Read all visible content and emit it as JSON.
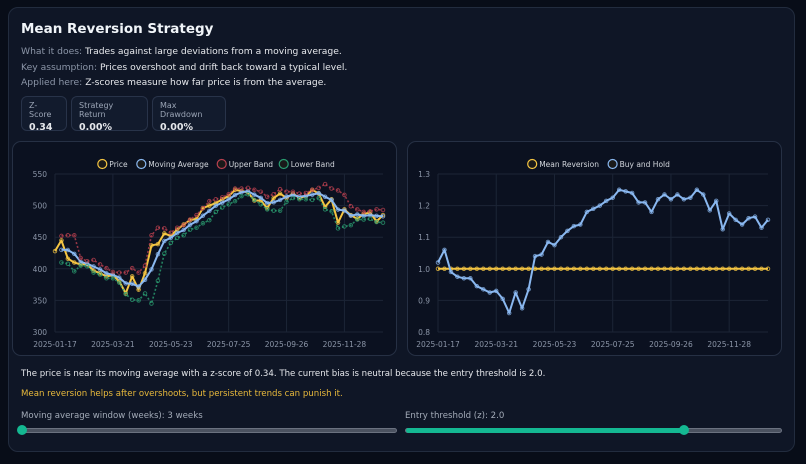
{
  "title": "Mean Reversion Strategy",
  "description": [
    {
      "key": "What it does:",
      "text": "Trades against large deviations from a moving average."
    },
    {
      "key": "Key assumption:",
      "text": "Prices overshoot and drift back toward a typical level."
    },
    {
      "key": "Applied here:",
      "text": "Z-scores measure how far price is from the average."
    }
  ],
  "stats": [
    {
      "label": "Z-Score",
      "value": "0.34"
    },
    {
      "label": "Strategy Return",
      "value": "0.00%"
    },
    {
      "label": "Max Drawdown",
      "value": "0.00%"
    }
  ],
  "summary": "The price is near its moving average with a z-score of 0.34. The current bias is neutral because the entry threshold is 2.0.",
  "warning": "Mean reversion helps after overshoots, but persistent trends can punish it.",
  "colors": {
    "price": "#f5c542",
    "ma": "#8ab8f0",
    "upper": "#b8404f",
    "lower": "#2a9d70",
    "accent": "#14b892",
    "warning": "#e8b93c"
  },
  "sliders": [
    {
      "label": "Moving average window (weeks): 3 weeks",
      "fraction": 0.0
    },
    {
      "label": "Entry threshold (z): 2.0",
      "fraction": 0.74
    }
  ],
  "chart_data": [
    {
      "type": "line",
      "ylim": [
        300,
        550
      ],
      "yticks": [
        300,
        350,
        400,
        450,
        500,
        550
      ],
      "grid": true,
      "legend": "top",
      "x": [
        "2025-01-17",
        "2025-01-24",
        "2025-01-31",
        "2025-02-07",
        "2025-02-14",
        "2025-02-21",
        "2025-02-28",
        "2025-03-07",
        "2025-03-14",
        "2025-03-21",
        "2025-03-28",
        "2025-04-04",
        "2025-04-11",
        "2025-04-18",
        "2025-04-25",
        "2025-05-02",
        "2025-05-09",
        "2025-05-16",
        "2025-05-23",
        "2025-05-30",
        "2025-06-06",
        "2025-06-13",
        "2025-06-20",
        "2025-06-27",
        "2025-07-04",
        "2025-07-11",
        "2025-07-18",
        "2025-07-25",
        "2025-08-01",
        "2025-08-08",
        "2025-08-15",
        "2025-08-22",
        "2025-08-29",
        "2025-09-05",
        "2025-09-12",
        "2025-09-19",
        "2025-09-26",
        "2025-10-03",
        "2025-10-10",
        "2025-10-17",
        "2025-10-24",
        "2025-10-31",
        "2025-11-07",
        "2025-11-14",
        "2025-11-21",
        "2025-11-28",
        "2025-12-05",
        "2025-12-12",
        "2025-12-19",
        "2025-12-26",
        "2026-01-02",
        "2026-01-09"
      ],
      "xticks": [
        "2025-01-17",
        "2025-03-21",
        "2025-05-23",
        "2025-07-25",
        "2025-09-26",
        "2025-11-28"
      ],
      "series": [
        {
          "name": "Price",
          "key": "price",
          "dashed": false,
          "values": [
            428,
            445,
            416,
            410,
            407,
            407,
            397,
            393,
            388,
            390,
            380,
            361,
            388,
            367,
            393,
            437,
            439,
            456,
            452,
            462,
            470,
            477,
            479,
            496,
            500,
            504,
            510,
            515,
            525,
            523,
            521,
            508,
            508,
            496,
            512,
            519,
            512,
            519,
            512,
            515,
            525,
            519,
            498,
            510,
            473,
            494,
            485,
            479,
            487,
            489,
            475,
            485
          ]
        },
        {
          "name": "Moving Average",
          "key": "ma",
          "dashed": false,
          "values": [
            null,
            430,
            429.7,
            423.7,
            411,
            408,
            403.7,
            399,
            392.7,
            390.3,
            386,
            377,
            376.3,
            372,
            382.7,
            399,
            423,
            444,
            449,
            456.7,
            461.3,
            469.7,
            475.3,
            484,
            491.7,
            500,
            504.7,
            509.7,
            516.7,
            521,
            523,
            517.3,
            512.3,
            504,
            505.3,
            509,
            514.3,
            516.7,
            514.3,
            515.3,
            517.3,
            519.7,
            514,
            509,
            493.7,
            492.3,
            484,
            486,
            483.7,
            485,
            483.7,
            483
          ]
        },
        {
          "name": "Upper Band",
          "key": "upper",
          "dashed": true,
          "values": [
            null,
            452,
            453,
            453,
            417,
            412,
            414,
            407,
            401,
            395,
            394,
            394,
            401,
            394,
            405,
            453,
            465,
            464,
            457,
            465,
            469,
            478,
            485,
            496,
            507,
            510,
            513,
            518,
            527,
            527,
            528,
            525,
            522,
            514,
            518,
            526,
            522,
            522,
            519,
            520,
            525,
            528,
            534,
            527,
            524,
            517,
            499,
            494,
            490,
            491,
            494,
            493
          ]
        },
        {
          "name": "Lower Band",
          "key": "lower",
          "dashed": true,
          "values": [
            null,
            410,
            408,
            396,
            405,
            404,
            394,
            391,
            385,
            385,
            378,
            360,
            351,
            350,
            361,
            345,
            381,
            424,
            441,
            449,
            453,
            462,
            465,
            472,
            477,
            490,
            497,
            502,
            507,
            515,
            518,
            509,
            502,
            494,
            492,
            492,
            506,
            512,
            510,
            510,
            509,
            512,
            494,
            491,
            464,
            467,
            469,
            478,
            478,
            479,
            474,
            473
          ]
        }
      ]
    },
    {
      "type": "line",
      "ylim": [
        0.8,
        1.3
      ],
      "yticks": [
        0.8,
        0.9,
        1.0,
        1.1,
        1.2,
        1.3
      ],
      "grid": true,
      "legend": "top",
      "xticks": [
        "2025-01-17",
        "2025-03-21",
        "2025-05-23",
        "2025-07-25",
        "2025-09-26",
        "2025-11-28"
      ],
      "series": [
        {
          "name": "Mean Reversion",
          "key": "price",
          "values": [
            1,
            1,
            1,
            1,
            1,
            1,
            1,
            1,
            1,
            1,
            1,
            1,
            1,
            1,
            1,
            1,
            1,
            1,
            1,
            1,
            1,
            1,
            1,
            1,
            1,
            1,
            1,
            1,
            1,
            1,
            1,
            1,
            1,
            1,
            1,
            1,
            1,
            1,
            1,
            1,
            1,
            1,
            1,
            1,
            1,
            1,
            1,
            1,
            1,
            1,
            1,
            1
          ]
        },
        {
          "name": "Buy and Hold",
          "key": "ma",
          "values": [
            1.02,
            1.06,
            0.99,
            0.975,
            0.97,
            0.97,
            0.945,
            0.935,
            0.925,
            0.93,
            0.905,
            0.86,
            0.925,
            0.875,
            0.935,
            1.04,
            1.045,
            1.085,
            1.075,
            1.1,
            1.12,
            1.135,
            1.14,
            1.18,
            1.19,
            1.2,
            1.215,
            1.225,
            1.25,
            1.245,
            1.24,
            1.21,
            1.21,
            1.18,
            1.22,
            1.235,
            1.22,
            1.235,
            1.22,
            1.225,
            1.25,
            1.235,
            1.185,
            1.215,
            1.125,
            1.175,
            1.155,
            1.14,
            1.16,
            1.165,
            1.13,
            1.155
          ]
        }
      ]
    }
  ]
}
